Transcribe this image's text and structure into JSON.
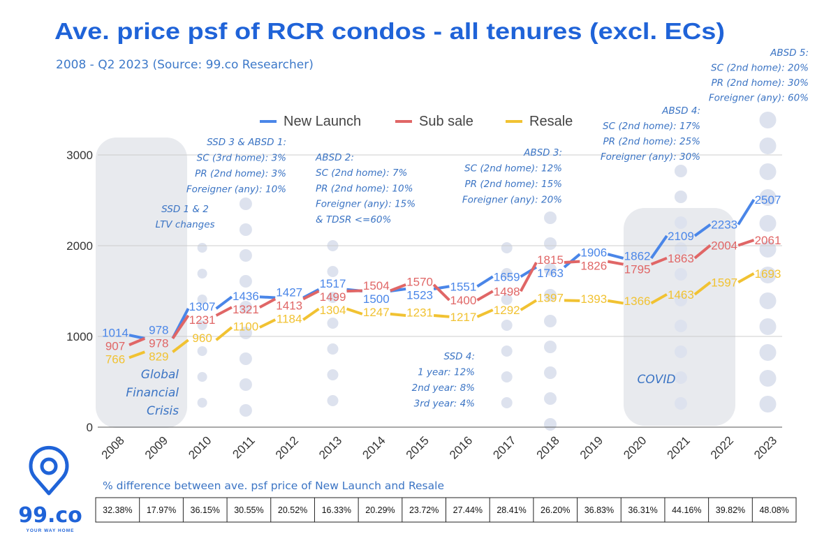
{
  "header": {
    "title": "Ave. price psf of RCR condos - all tenures (excl. ECs)",
    "subtitle": "2008 - Q2 2023  (Source: 99.co Researcher)"
  },
  "logo": {
    "name": "99.co",
    "tagline": "YOUR WAY HOME"
  },
  "colors": {
    "new_launch": "#4a86e8",
    "sub_sale": "#e06666",
    "resale": "#f1c232",
    "brand": "#1f63d8"
  },
  "chart_data": {
    "type": "line",
    "title": "Ave. price psf of RCR condos - all tenures (excl. ECs)",
    "x": [
      "2008",
      "2009",
      "2010",
      "2011",
      "2012",
      "2013",
      "2014",
      "2015",
      "2016",
      "2017",
      "2018",
      "2019",
      "2020",
      "2021",
      "2022",
      "2023"
    ],
    "ylim": [
      0,
      3000
    ],
    "yticks": [
      "0",
      "1000",
      "2000",
      "3000"
    ],
    "grid": true,
    "legend_position": "top-center",
    "series": [
      {
        "name": "New Launch",
        "color": "#4a86e8",
        "values": [
          1014,
          978,
          1307,
          1436,
          1427,
          1517,
          1500,
          1523,
          1551,
          1659,
          1763,
          1906,
          1862,
          2109,
          2233,
          2507
        ]
      },
      {
        "name": "Sub sale",
        "color": "#e06666",
        "values": [
          907,
          978,
          1231,
          1321,
          1413,
          1499,
          1504,
          1570,
          1400,
          1498,
          1815,
          1826,
          1795,
          1863,
          2004,
          2061
        ]
      },
      {
        "name": "Resale",
        "color": "#f1c232",
        "values": [
          766,
          829,
          960,
          1100,
          1184,
          1304,
          1247,
          1231,
          1217,
          1292,
          1397,
          1393,
          1366,
          1463,
          1597,
          1693
        ]
      }
    ],
    "annotations": {
      "gfc": [
        "Global",
        "Financial",
        "Crisis"
      ],
      "covid": [
        "COVID"
      ],
      "ssd12": [
        "SSD 1 & 2",
        "LTV changes"
      ],
      "ssd3": [
        "SSD 3 & ABSD 1:",
        "SC (3rd home): 3%",
        "PR (2nd home): 3%",
        "Foreigner (any): 10%"
      ],
      "absd2": [
        "ABSD 2:",
        "SC (2nd home): 7%",
        "PR (2nd home): 10%",
        "Foreigner (any): 15%",
        "& TDSR <=60%"
      ],
      "absd3": [
        "ABSD 3:",
        "SC (2nd home): 12%",
        "PR (2nd home): 15%",
        "Foreigner (any): 20%"
      ],
      "absd4": [
        "ABSD 4:",
        "SC (2nd home): 17%",
        "PR (2nd home): 25%",
        "Foreigner (any): 30%"
      ],
      "absd5": [
        "ABSD 5:",
        "SC (2nd home): 20%",
        "PR (2nd home): 30%",
        "Foreigner (any): 60%"
      ],
      "ssd4": [
        "SSD 4:",
        "1 year: 12%",
        "2nd year: 8%",
        "3rd year: 4%"
      ]
    }
  },
  "table": {
    "caption": "% difference between ave. psf price of New Launch and Resale",
    "values": [
      "32.38%",
      "17.97%",
      "36.15%",
      "30.55%",
      "20.52%",
      "16.33%",
      "20.29%",
      "23.72%",
      "27.44%",
      "28.41%",
      "26.20%",
      "36.83%",
      "36.31%",
      "44.16%",
      "39.82%",
      "48.08%"
    ]
  }
}
